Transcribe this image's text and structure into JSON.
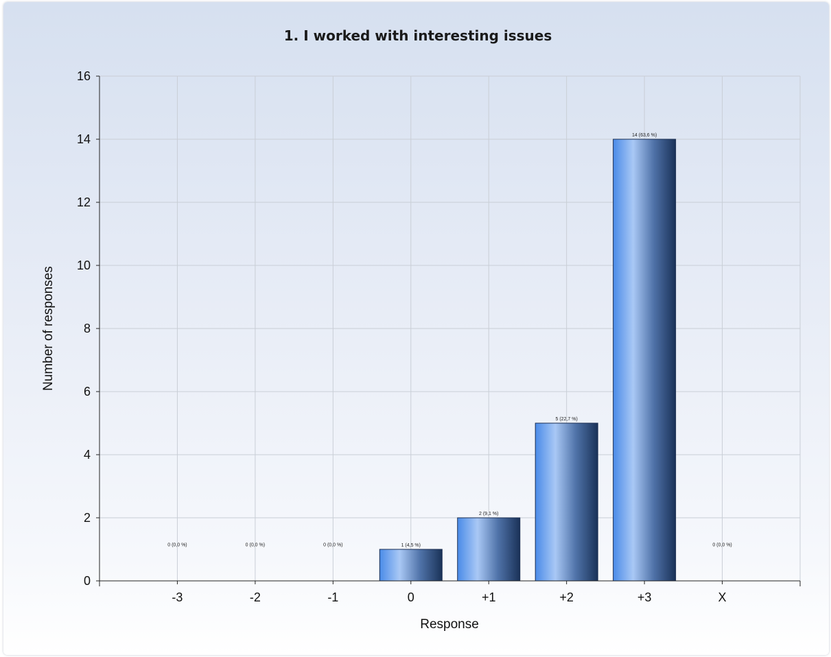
{
  "chart_data": {
    "type": "bar",
    "title": "1. I worked with interesting issues",
    "xlabel": "Response",
    "ylabel": "Number of responses",
    "categories": [
      "-3",
      "-2",
      "-1",
      "0",
      "+1",
      "+2",
      "+3",
      "X"
    ],
    "values": [
      0,
      0,
      0,
      1,
      2,
      5,
      14,
      0
    ],
    "data_labels": [
      "0 (0,0 %)",
      "0 (0,0 %)",
      "0 (0,0 %)",
      "1 (4,5 %)",
      "2 (9,1 %)",
      "5 (22,7 %)",
      "14 (63,6 %)",
      "0 (0,0 %)"
    ],
    "ylim": [
      0,
      16
    ],
    "yticks": [
      0,
      2,
      4,
      6,
      8,
      10,
      12,
      14,
      16
    ],
    "grid": true,
    "legend": "none",
    "colors": {
      "bar_light": "#a9c8f5",
      "bar_mid": "#4a8be8",
      "bar_dark": "#1a3258",
      "grid": "#c9ced6",
      "background_top": "#d6e0f0",
      "background_bottom": "#ffffff"
    }
  }
}
